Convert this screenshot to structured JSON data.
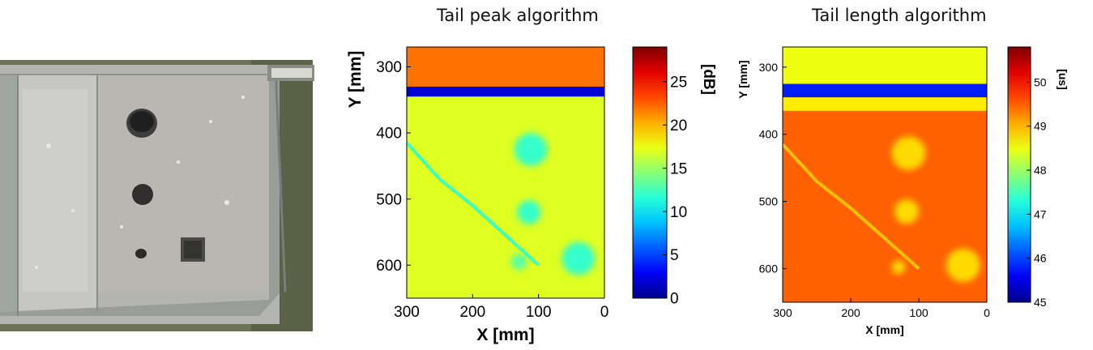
{
  "chart_data": [
    {
      "type": "heatmap",
      "title": "Tail peak algorithm",
      "xlabel": "X [mm]",
      "ylabel": "Y [mm]",
      "xlim": [
        300,
        0
      ],
      "ylim": [
        650,
        270
      ],
      "xticks": [
        "300",
        "200",
        "100",
        "0"
      ],
      "yticks": [
        "300",
        "400",
        "500",
        "600"
      ],
      "colorbar": {
        "label": "[dB]",
        "range": [
          0,
          29
        ],
        "ticks": [
          "0",
          "5",
          "10",
          "15",
          "20",
          "25"
        ]
      },
      "colormap": "jet",
      "background_level": 17,
      "features": [
        {
          "kind": "band",
          "y_from": 270,
          "y_to": 330,
          "level": 22
        },
        {
          "kind": "band",
          "y_from": 330,
          "y_to": 345,
          "level": 2
        },
        {
          "kind": "spot",
          "x": 112,
          "y": 425,
          "radius": 25,
          "level": 12
        },
        {
          "kind": "spot",
          "x": 115,
          "y": 520,
          "radius": 18,
          "level": 12
        },
        {
          "kind": "spot",
          "x": 40,
          "y": 590,
          "radius": 25,
          "level": 12
        },
        {
          "kind": "spot",
          "x": 130,
          "y": 595,
          "radius": 12,
          "level": 13
        },
        {
          "kind": "crack",
          "points": [
            [
              300,
              415
            ],
            [
              250,
              470
            ],
            [
              200,
              510
            ],
            [
              150,
              555
            ],
            [
              100,
              600
            ]
          ],
          "level": 11
        }
      ]
    },
    {
      "type": "heatmap",
      "title": "Tail length algorithm",
      "xlabel": "X [mm]",
      "ylabel": "Y [mm]",
      "xlim": [
        300,
        0
      ],
      "ylim": [
        650,
        270
      ],
      "xticks": [
        "300",
        "200",
        "100",
        "0"
      ],
      "yticks": [
        "300",
        "400",
        "500",
        "600"
      ],
      "colorbar": {
        "label": "[us]",
        "range": [
          45,
          50.8
        ],
        "ticks": [
          "45",
          "46",
          "47",
          "48",
          "49",
          "50"
        ]
      },
      "colormap": "jet",
      "background_level": 49.5,
      "features": [
        {
          "kind": "band",
          "y_from": 270,
          "y_to": 325,
          "level": 48.5
        },
        {
          "kind": "band",
          "y_from": 325,
          "y_to": 345,
          "level": 45.8
        },
        {
          "kind": "band",
          "y_from": 345,
          "y_to": 365,
          "level": 48.7
        },
        {
          "kind": "spot",
          "x": 115,
          "y": 428,
          "radius": 25,
          "level": 48.8
        },
        {
          "kind": "spot",
          "x": 118,
          "y": 515,
          "radius": 18,
          "level": 48.8
        },
        {
          "kind": "spot",
          "x": 35,
          "y": 595,
          "radius": 25,
          "level": 48.8
        },
        {
          "kind": "spot",
          "x": 130,
          "y": 598,
          "radius": 10,
          "level": 48.8
        },
        {
          "kind": "crack",
          "points": [
            [
              300,
              415
            ],
            [
              250,
              470
            ],
            [
              200,
              510
            ],
            [
              150,
              555
            ],
            [
              100,
              600
            ]
          ],
          "level": 48.8
        }
      ]
    }
  ]
}
